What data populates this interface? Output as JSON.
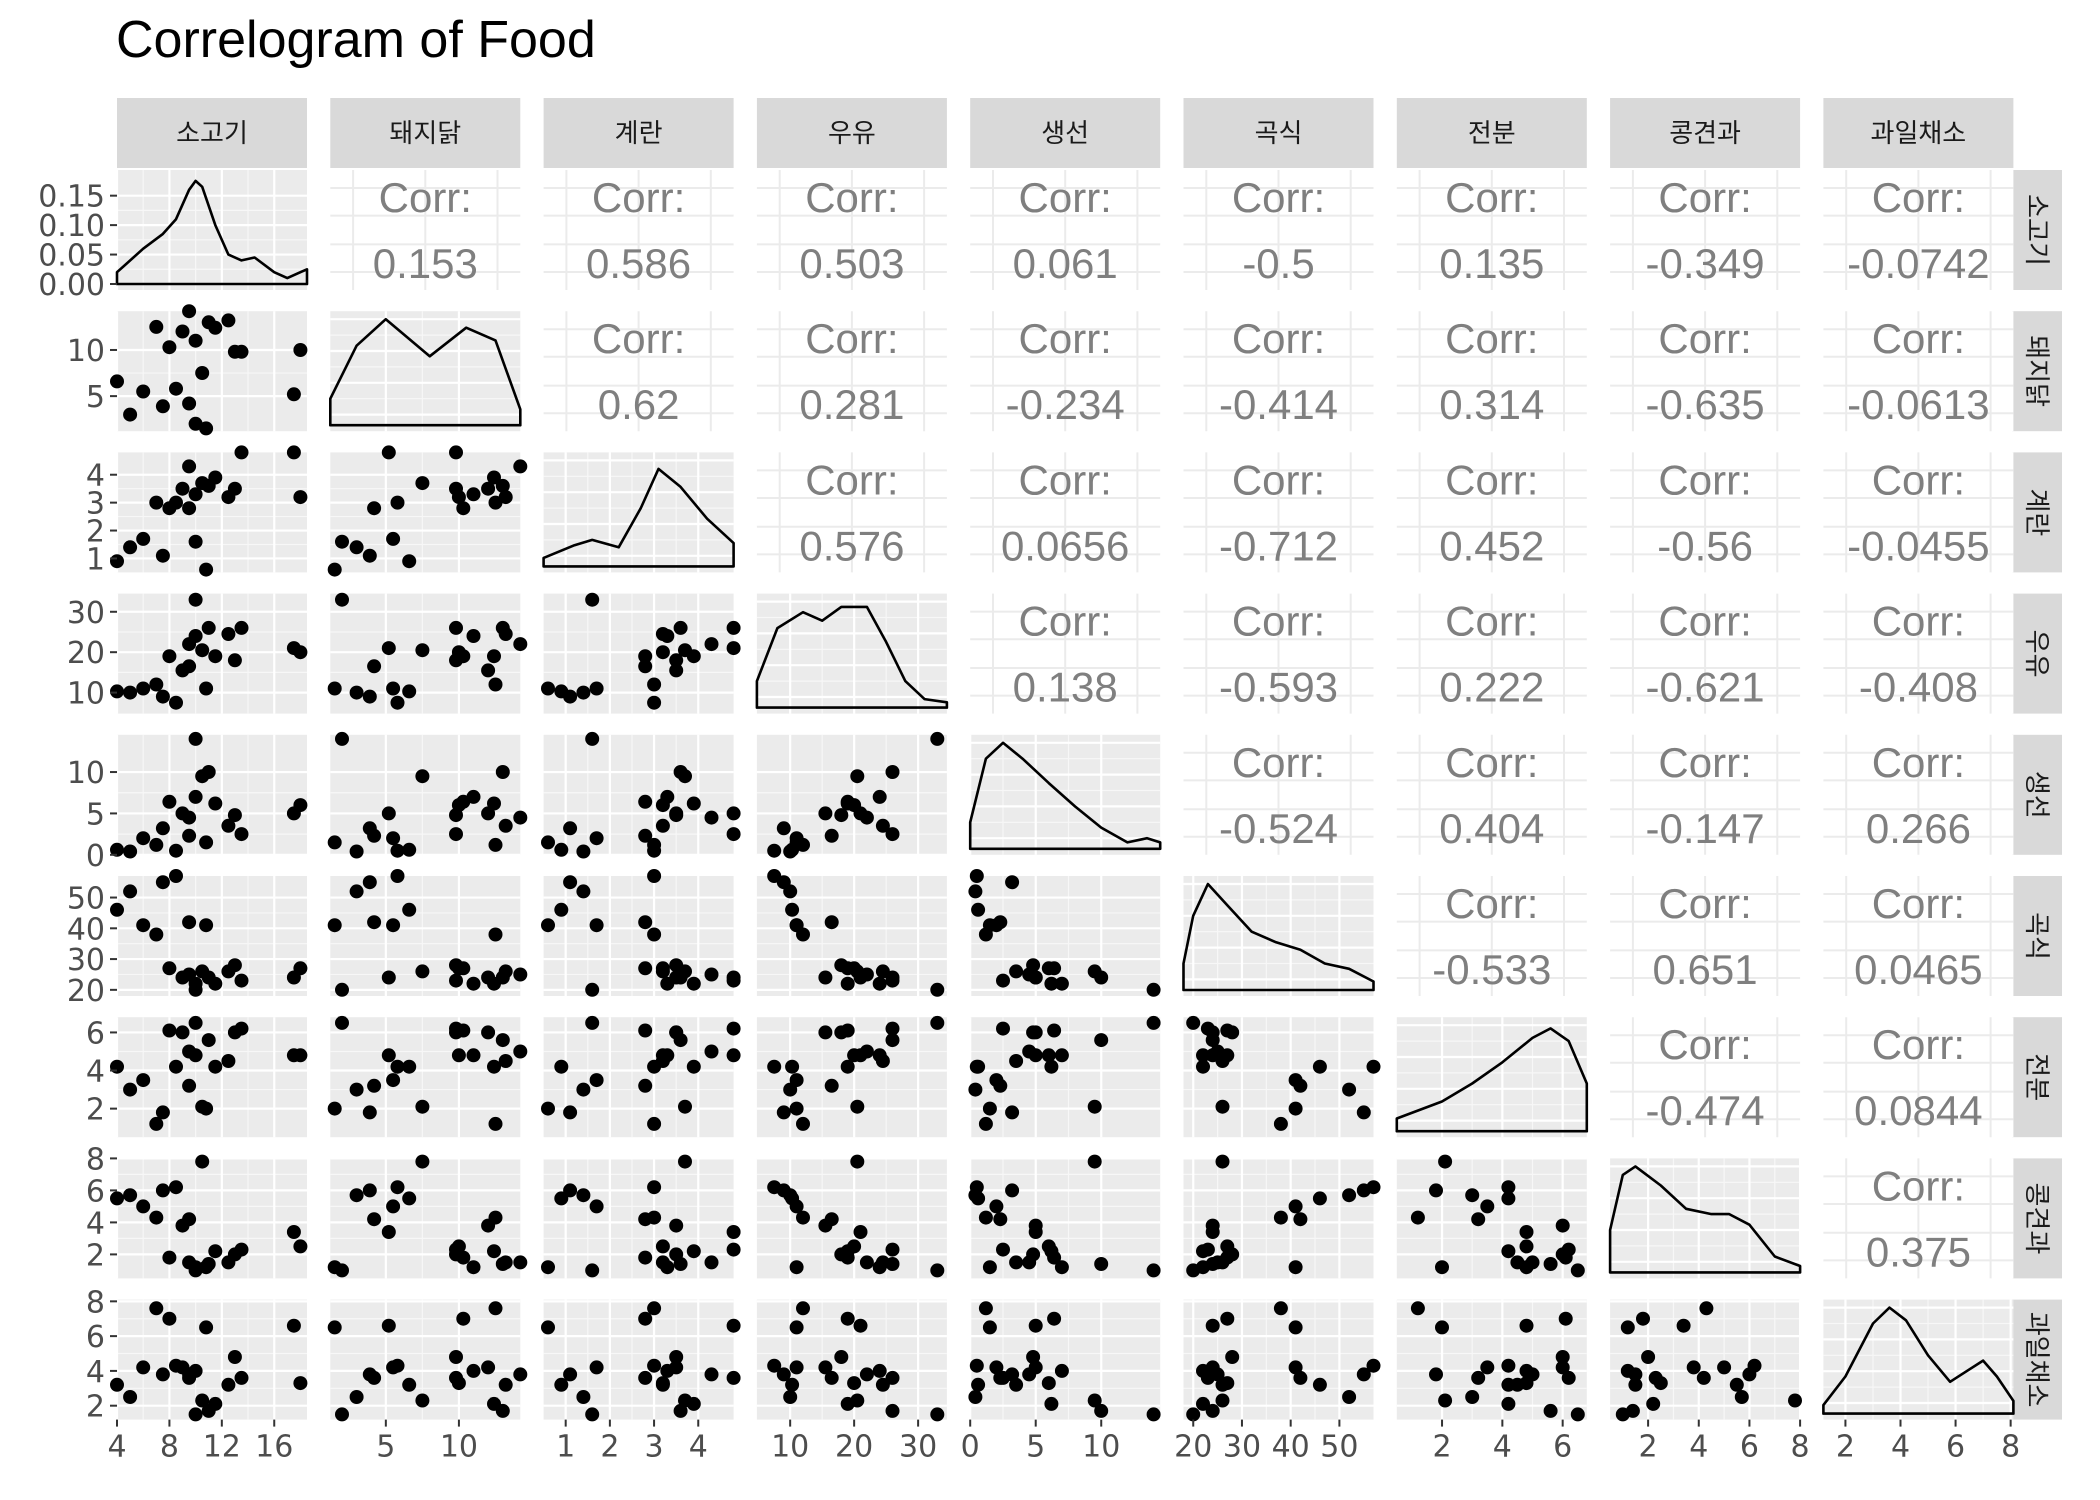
{
  "title": "Correlogram of Food",
  "chart_data": {
    "type": "scatter",
    "title": "Correlogram of Food",
    "variables": [
      "소고기",
      "돼지닭",
      "계란",
      "우유",
      "생선",
      "곡식",
      "전분",
      "콩견과",
      "과일채소"
    ],
    "corr_label": "Corr:",
    "correlations": [
      {
        "row": "소고기",
        "col": "돼지닭",
        "value": "0.153"
      },
      {
        "row": "소고기",
        "col": "계란",
        "value": "0.586"
      },
      {
        "row": "소고기",
        "col": "우유",
        "value": "0.503"
      },
      {
        "row": "소고기",
        "col": "생선",
        "value": "0.061"
      },
      {
        "row": "소고기",
        "col": "곡식",
        "value": "-0.5"
      },
      {
        "row": "소고기",
        "col": "전분",
        "value": "0.135"
      },
      {
        "row": "소고기",
        "col": "콩견과",
        "value": "-0.349"
      },
      {
        "row": "소고기",
        "col": "과일채소",
        "value": "-0.0742"
      },
      {
        "row": "돼지닭",
        "col": "계란",
        "value": "0.62"
      },
      {
        "row": "돼지닭",
        "col": "우유",
        "value": "0.281"
      },
      {
        "row": "돼지닭",
        "col": "생선",
        "value": "-0.234"
      },
      {
        "row": "돼지닭",
        "col": "곡식",
        "value": "-0.414"
      },
      {
        "row": "돼지닭",
        "col": "전분",
        "value": "0.314"
      },
      {
        "row": "돼지닭",
        "col": "콩견과",
        "value": "-0.635"
      },
      {
        "row": "돼지닭",
        "col": "과일채소",
        "value": "-0.0613"
      },
      {
        "row": "계란",
        "col": "우유",
        "value": "0.576"
      },
      {
        "row": "계란",
        "col": "생선",
        "value": "0.0656"
      },
      {
        "row": "계란",
        "col": "곡식",
        "value": "-0.712"
      },
      {
        "row": "계란",
        "col": "전분",
        "value": "0.452"
      },
      {
        "row": "계란",
        "col": "콩견과",
        "value": "-0.56"
      },
      {
        "row": "계란",
        "col": "과일채소",
        "value": "-0.0455"
      },
      {
        "row": "우유",
        "col": "생선",
        "value": "0.138"
      },
      {
        "row": "우유",
        "col": "곡식",
        "value": "-0.593"
      },
      {
        "row": "우유",
        "col": "전분",
        "value": "0.222"
      },
      {
        "row": "우유",
        "col": "콩견과",
        "value": "-0.621"
      },
      {
        "row": "우유",
        "col": "과일채소",
        "value": "-0.408"
      },
      {
        "row": "생선",
        "col": "곡식",
        "value": "-0.524"
      },
      {
        "row": "생선",
        "col": "전분",
        "value": "0.404"
      },
      {
        "row": "생선",
        "col": "콩견과",
        "value": "-0.147"
      },
      {
        "row": "생선",
        "col": "과일채소",
        "value": "0.266"
      },
      {
        "row": "곡식",
        "col": "전분",
        "value": "-0.533"
      },
      {
        "row": "곡식",
        "col": "콩견과",
        "value": "0.651"
      },
      {
        "row": "곡식",
        "col": "과일채소",
        "value": "0.0465"
      },
      {
        "row": "전분",
        "col": "콩견과",
        "value": "-0.474"
      },
      {
        "row": "전분",
        "col": "과일채소",
        "value": "0.0844"
      },
      {
        "row": "콩견과",
        "col": "과일채소",
        "value": "0.375"
      }
    ],
    "axes": [
      {
        "variable": "소고기",
        "range": [
          4,
          18.5
        ],
        "ticks": [
          4,
          8,
          12,
          16
        ]
      },
      {
        "variable": "돼지닭",
        "range": [
          1.2,
          14.2
        ],
        "ticks": [
          5,
          10
        ]
      },
      {
        "variable": "계란",
        "range": [
          0.5,
          4.8
        ],
        "ticks": [
          1,
          2,
          3,
          4
        ]
      },
      {
        "variable": "우유",
        "range": [
          4.8,
          34.5
        ],
        "ticks": [
          10,
          20,
          30
        ]
      },
      {
        "variable": "생선",
        "range": [
          0,
          14.5
        ],
        "ticks": [
          0,
          5,
          10
        ]
      },
      {
        "variable": "곡식",
        "range": [
          18,
          57
        ],
        "ticks": [
          20,
          30,
          40,
          50
        ]
      },
      {
        "variable": "전분",
        "range": [
          0.5,
          6.8
        ],
        "ticks": [
          2,
          4,
          6
        ]
      },
      {
        "variable": "콩견과",
        "range": [
          0.5,
          8
        ],
        "ticks": [
          2,
          4,
          6,
          8
        ]
      },
      {
        "variable": "과일채소",
        "range": [
          1.2,
          8.1
        ],
        "ticks": [
          2,
          4,
          6,
          8
        ]
      }
    ],
    "density_y_axis": {
      "range": [
        0,
        0.18
      ],
      "ticks": [
        "0.00",
        "0.05",
        "0.10",
        "0.15"
      ]
    },
    "density_curves": [
      [
        [
          4.0,
          0.02
        ],
        [
          6.0,
          0.06
        ],
        [
          7.5,
          0.085
        ],
        [
          8.5,
          0.11
        ],
        [
          9.5,
          0.16
        ],
        [
          10.0,
          0.175
        ],
        [
          10.5,
          0.165
        ],
        [
          11.5,
          0.1
        ],
        [
          12.5,
          0.05
        ],
        [
          13.5,
          0.04
        ],
        [
          14.5,
          0.045
        ],
        [
          16.0,
          0.02
        ],
        [
          17.0,
          0.01
        ],
        [
          18.0,
          0.02
        ],
        [
          18.5,
          0.025
        ]
      ],
      [
        [
          1.2,
          0.25
        ],
        [
          3.0,
          0.75
        ],
        [
          5.0,
          1.0
        ],
        [
          8.0,
          0.65
        ],
        [
          10.5,
          0.92
        ],
        [
          12.5,
          0.8
        ],
        [
          14.2,
          0.15
        ]
      ],
      [
        [
          0.5,
          0.08
        ],
        [
          1.2,
          0.2
        ],
        [
          1.6,
          0.25
        ],
        [
          2.2,
          0.18
        ],
        [
          2.7,
          0.55
        ],
        [
          3.1,
          0.92
        ],
        [
          3.6,
          0.75
        ],
        [
          4.2,
          0.45
        ],
        [
          4.8,
          0.22
        ]
      ],
      [
        [
          4.8,
          0.25
        ],
        [
          8.0,
          0.75
        ],
        [
          12.0,
          0.9
        ],
        [
          15.0,
          0.82
        ],
        [
          18.0,
          0.95
        ],
        [
          22.0,
          0.95
        ],
        [
          25.0,
          0.62
        ],
        [
          28.0,
          0.25
        ],
        [
          31.0,
          0.08
        ],
        [
          34.5,
          0.05
        ]
      ],
      [
        [
          0,
          0.25
        ],
        [
          1.2,
          0.85
        ],
        [
          2.5,
          1.0
        ],
        [
          4.0,
          0.85
        ],
        [
          6.0,
          0.62
        ],
        [
          8.0,
          0.4
        ],
        [
          10.0,
          0.2
        ],
        [
          12.0,
          0.06
        ],
        [
          13.5,
          0.1
        ],
        [
          14.5,
          0.06
        ]
      ],
      [
        [
          18,
          0.25
        ],
        [
          20,
          0.7
        ],
        [
          23,
          1.0
        ],
        [
          27,
          0.8
        ],
        [
          32,
          0.55
        ],
        [
          37,
          0.45
        ],
        [
          42,
          0.38
        ],
        [
          47,
          0.25
        ],
        [
          52,
          0.2
        ],
        [
          57,
          0.08
        ]
      ],
      [
        [
          0.5,
          0.12
        ],
        [
          2.0,
          0.28
        ],
        [
          3.0,
          0.45
        ],
        [
          4.0,
          0.65
        ],
        [
          5.0,
          0.88
        ],
        [
          5.6,
          0.97
        ],
        [
          6.2,
          0.85
        ],
        [
          6.8,
          0.45
        ]
      ],
      [
        [
          0.5,
          0.4
        ],
        [
          1.0,
          0.92
        ],
        [
          1.5,
          1.0
        ],
        [
          2.5,
          0.82
        ],
        [
          3.5,
          0.6
        ],
        [
          4.5,
          0.55
        ],
        [
          5.2,
          0.55
        ],
        [
          6.0,
          0.45
        ],
        [
          7.0,
          0.15
        ],
        [
          8.0,
          0.06
        ]
      ],
      [
        [
          1.2,
          0.08
        ],
        [
          2.0,
          0.35
        ],
        [
          3.0,
          0.85
        ],
        [
          3.6,
          1.0
        ],
        [
          4.2,
          0.88
        ],
        [
          5.0,
          0.55
        ],
        [
          5.8,
          0.3
        ],
        [
          6.4,
          0.4
        ],
        [
          7.0,
          0.5
        ],
        [
          7.5,
          0.35
        ],
        [
          8.1,
          0.12
        ]
      ]
    ],
    "observations": [
      [
        4.0,
        6.6,
        0.9,
        10.3,
        0.6,
        46.0,
        4.2,
        5.5,
        3.2
      ],
      [
        5.0,
        3.0,
        1.4,
        10.0,
        0.4,
        52.0,
        3.0,
        5.7,
        2.5
      ],
      [
        6.0,
        5.5,
        1.7,
        11.0,
        2.0,
        41.0,
        3.5,
        5.0,
        4.2
      ],
      [
        7.0,
        12.5,
        3.0,
        12.0,
        1.2,
        38.0,
        1.2,
        4.3,
        7.6
      ],
      [
        7.5,
        3.9,
        1.1,
        9.0,
        3.2,
        55.0,
        1.8,
        6.0,
        3.8
      ],
      [
        8.0,
        10.3,
        2.8,
        19.0,
        6.4,
        27.0,
        6.1,
        1.8,
        7.0
      ],
      [
        8.5,
        5.8,
        3.0,
        7.5,
        0.5,
        57.0,
        4.2,
        6.2,
        4.3
      ],
      [
        9.0,
        12.0,
        3.5,
        15.5,
        5.0,
        24.0,
        6.0,
        3.8,
        4.2
      ],
      [
        9.5,
        14.2,
        4.3,
        22.0,
        4.5,
        25.0,
        5.0,
        1.5,
        3.8
      ],
      [
        9.5,
        4.2,
        2.8,
        16.5,
        2.3,
        42.0,
        3.2,
        4.2,
        3.6
      ],
      [
        10.0,
        11.0,
        3.3,
        24.0,
        7.0,
        22.0,
        4.8,
        1.2,
        4.0
      ],
      [
        10.0,
        2.0,
        1.6,
        33.0,
        14.0,
        20.0,
        6.5,
        1.0,
        1.5
      ],
      [
        10.5,
        7.5,
        3.7,
        20.5,
        9.5,
        26.0,
        2.1,
        7.8,
        2.3
      ],
      [
        10.8,
        1.5,
        0.6,
        11.0,
        1.5,
        41.0,
        2.0,
        1.2,
        6.5
      ],
      [
        11.0,
        13.0,
        3.6,
        26.0,
        10.0,
        24.0,
        5.6,
        1.4,
        1.7
      ],
      [
        11.5,
        12.4,
        3.9,
        19.0,
        6.2,
        22.0,
        4.2,
        2.2,
        2.1
      ],
      [
        12.5,
        13.2,
        3.2,
        24.5,
        3.5,
        26.0,
        4.5,
        1.5,
        3.2
      ],
      [
        13.0,
        9.8,
        3.5,
        18.0,
        4.8,
        28.0,
        6.0,
        2.0,
        4.8
      ],
      [
        13.5,
        9.8,
        4.8,
        26.0,
        2.5,
        23.0,
        6.2,
        2.3,
        3.6
      ],
      [
        17.5,
        5.2,
        4.8,
        21.0,
        5.0,
        24.0,
        4.8,
        3.4,
        6.6
      ],
      [
        18.0,
        10.0,
        3.2,
        20.0,
        6.0,
        27.0,
        4.8,
        2.5,
        3.3
      ]
    ]
  }
}
